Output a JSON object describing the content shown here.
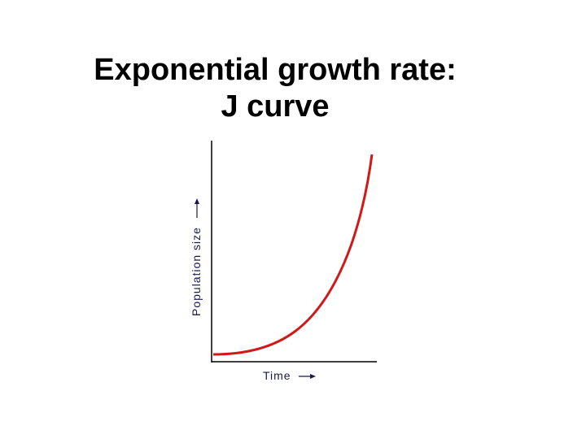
{
  "title": {
    "line1": "Exponential growth rate:",
    "line2": "J curve"
  },
  "axes": {
    "y_label": "Population size",
    "x_label": "Time"
  }
}
